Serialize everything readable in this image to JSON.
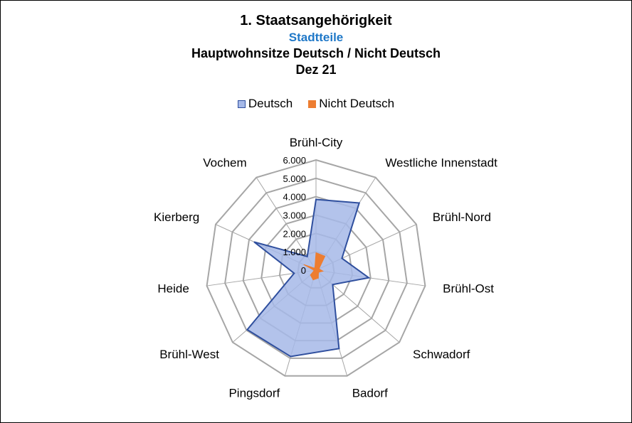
{
  "chart_data": {
    "type": "radar",
    "title": "1. Staatsangehörigkeit",
    "subtitle": "Stadtteile",
    "title_line3": "Hauptwohnsitze Deutsch / Nicht Deutsch",
    "title_line4": "Dez 21",
    "categories": [
      "Brühl-City",
      "Westliche Innenstadt",
      "Brühl-Nord",
      "Brühl-Ost",
      "Schwadorf",
      "Badorf",
      "Pingsdorf",
      "Brühl-West",
      "Heide",
      "Kierberg",
      "Vochem"
    ],
    "series": [
      {
        "name": "Deutsch",
        "values": [
          3850,
          4350,
          1550,
          2900,
          1200,
          4450,
          4900,
          4950,
          1200,
          3700,
          880
        ],
        "fill": "#a6b9e8",
        "stroke": "#2f4f9e"
      },
      {
        "name": "Nicht Deutsch",
        "values": [
          950,
          900,
          180,
          380,
          180,
          450,
          550,
          400,
          100,
          720,
          120
        ],
        "fill": "#ed7d31",
        "stroke": "#ed7d31"
      }
    ],
    "rlim": [
      0,
      6000
    ],
    "rticks": [
      0,
      1000,
      2000,
      3000,
      4000,
      5000,
      6000
    ],
    "rtick_labels": [
      "0",
      "1.000",
      "2.000",
      "3.000",
      "4.000",
      "5.000",
      "6.000"
    ],
    "grid": true,
    "legend_position": "top"
  },
  "colors": {
    "subtitle": "#1f78c8",
    "gridline": "#a6a6a6"
  }
}
